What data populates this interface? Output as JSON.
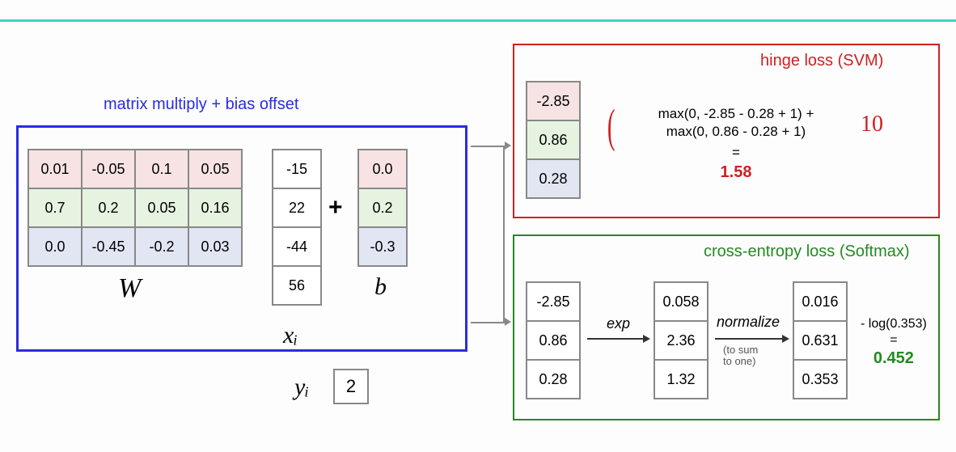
{
  "colors": {
    "pink": "#f7e3e3",
    "green": "#e7f3e1",
    "blue": "#e2e6f3",
    "red": "#d02020",
    "darkgreen": "#228b22",
    "blueborder": "#2a2de0"
  },
  "left": {
    "title": "matrix multiply + bias offset",
    "W": [
      [
        "0.01",
        "-0.05",
        "0.1",
        "0.05"
      ],
      [
        "0.7",
        "0.2",
        "0.05",
        "0.16"
      ],
      [
        "0.0",
        "-0.45",
        "-0.2",
        "0.03"
      ]
    ],
    "W_label": "W",
    "xi": [
      "-15",
      "22",
      "-44",
      "56"
    ],
    "xi_label": "xᵢ",
    "plus": "+",
    "b": [
      "0.0",
      "0.2",
      "-0.3"
    ],
    "b_label": "b",
    "yi_label": "yᵢ",
    "yi_value": "2"
  },
  "hinge": {
    "title": "hinge loss (SVM)",
    "scores": [
      "-2.85",
      "0.86",
      "0.28"
    ],
    "line1": "max(0, -2.85 - 0.28 + 1) +",
    "line2": "max(0, 0.86 - 0.28 + 1)",
    "eq": "=",
    "result": "1.58",
    "annotation": "10"
  },
  "softmax": {
    "title": "cross-entropy loss (Softmax)",
    "scores": [
      "-2.85",
      "0.86",
      "0.28"
    ],
    "exp_label": "exp",
    "exp_vals": [
      "0.058",
      "2.36",
      "1.32"
    ],
    "norm_label": "normalize",
    "norm_sub1": "(to sum",
    "norm_sub2": "to one)",
    "norm_vals": [
      "0.016",
      "0.631",
      "0.353"
    ],
    "final_expr": "- log(0.353)",
    "final_eq": "=",
    "final_result": "0.452"
  }
}
